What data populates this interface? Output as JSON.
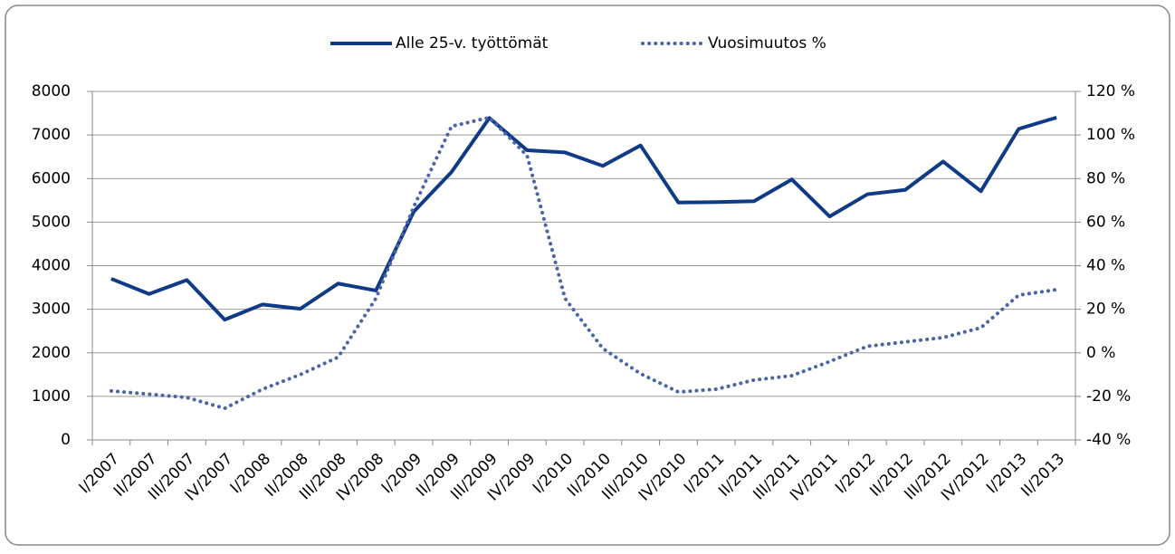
{
  "chart_data": {
    "type": "line",
    "categories": [
      "I/2007",
      "II/2007",
      "III/2007",
      "IV/2007",
      "I/2008",
      "II/2008",
      "III/2008",
      "IV/2008",
      "I/2009",
      "II/2009",
      "III/2009",
      "IV/2009",
      "I/2010",
      "II/2010",
      "III/2010",
      "IV/2010",
      "I/2011",
      "II/2011",
      "III/2011",
      "IV/2011",
      "I/2012",
      "II/2012",
      "III/2012",
      "IV/2012",
      "I/2013",
      "II/2013"
    ],
    "series": [
      {
        "name": "Alle 25-v. työttömät",
        "color": "#0e3a86",
        "style": "solid",
        "values": [
          3700,
          3350,
          3670,
          2760,
          3110,
          3010,
          3590,
          3430,
          5240,
          6150,
          7390,
          6650,
          6600,
          6290,
          6760,
          5450,
          5460,
          5480,
          5980,
          5130,
          5640,
          5740,
          6390,
          5710,
          7140,
          7400
        ]
      },
      {
        "name": "Vuosimuutos %",
        "color": "#4a64a8",
        "style": "dotted",
        "axis": "y2",
        "values": [
          -17.5,
          -19,
          -20.5,
          -25.5,
          -16.7,
          -10,
          -2,
          25,
          67,
          104,
          108,
          90.5,
          25,
          2,
          -9.6,
          -18,
          -16.7,
          -12.5,
          -10.5,
          -4,
          3,
          5,
          7,
          11.5,
          26.5,
          29
        ]
      }
    ],
    "ylim": [
      0,
      8000
    ],
    "yticks": [
      0,
      1000,
      2000,
      3000,
      4000,
      5000,
      6000,
      7000,
      8000
    ],
    "y2lim": [
      -40,
      120
    ],
    "y2ticks": [
      {
        "value": -40,
        "label": "-40 %"
      },
      {
        "value": -20,
        "label": "-20 %"
      },
      {
        "value": 0,
        "label": "0 %"
      },
      {
        "value": 20,
        "label": "20 %"
      },
      {
        "value": 40,
        "label": "40 %"
      },
      {
        "value": 60,
        "label": "60 %"
      },
      {
        "value": 80,
        "label": "80 %"
      },
      {
        "value": 100,
        "label": "100 %"
      },
      {
        "value": 120,
        "label": "120 %"
      }
    ],
    "grid": true,
    "legend": "top"
  }
}
